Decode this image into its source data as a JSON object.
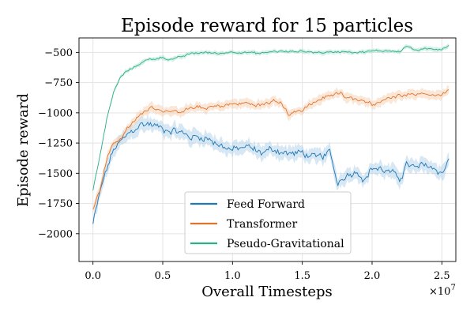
{
  "chart_data": {
    "type": "line",
    "title": "Episode reward for 15 particles",
    "xlabel": "Overall Timesteps",
    "ylabel": "Episode reward",
    "x_multiplier_label": "×10",
    "x_multiplier_exponent": "7",
    "xlim": [
      -0.1,
      2.6
    ],
    "ylim": [
      -2230,
      -380
    ],
    "xticks": [
      0.0,
      0.5,
      1.0,
      1.5,
      2.0,
      2.5
    ],
    "xtick_labels": [
      "0.0",
      "0.5",
      "1.0",
      "1.5",
      "2.0",
      "2.5"
    ],
    "yticks": [
      -2000,
      -1750,
      -1500,
      -1250,
      -1000,
      -750,
      -500
    ],
    "ytick_labels": [
      "−2000",
      "−1750",
      "−1500",
      "−1250",
      "−1000",
      "−750",
      "−500"
    ],
    "grid": true,
    "legend_position": "lower-center",
    "series": [
      {
        "name": "Feed Forward",
        "color": "#1f77b4",
        "band_color": "#a6cbe6",
        "band": 60,
        "noise": 45,
        "anchors": [
          [
            0.0,
            -1920
          ],
          [
            0.05,
            -1660
          ],
          [
            0.1,
            -1460
          ],
          [
            0.15,
            -1300
          ],
          [
            0.2,
            -1240
          ],
          [
            0.25,
            -1180
          ],
          [
            0.3,
            -1130
          ],
          [
            0.35,
            -1095
          ],
          [
            0.4,
            -1090
          ],
          [
            0.5,
            -1130
          ],
          [
            0.6,
            -1150
          ],
          [
            0.7,
            -1200
          ],
          [
            0.8,
            -1200
          ],
          [
            0.9,
            -1260
          ],
          [
            1.0,
            -1310
          ],
          [
            1.1,
            -1280
          ],
          [
            1.2,
            -1330
          ],
          [
            1.3,
            -1300
          ],
          [
            1.4,
            -1340
          ],
          [
            1.5,
            -1330
          ],
          [
            1.6,
            -1380
          ],
          [
            1.7,
            -1330
          ],
          [
            1.75,
            -1580
          ],
          [
            1.8,
            -1520
          ],
          [
            1.9,
            -1480
          ],
          [
            1.95,
            -1560
          ],
          [
            2.0,
            -1450
          ],
          [
            2.1,
            -1480
          ],
          [
            2.2,
            -1540
          ],
          [
            2.25,
            -1420
          ],
          [
            2.3,
            -1460
          ],
          [
            2.4,
            -1430
          ],
          [
            2.5,
            -1500
          ],
          [
            2.55,
            -1380
          ]
        ]
      },
      {
        "name": "Transformer",
        "color": "#e1742c",
        "band_color": "#f6c9a9",
        "band": 40,
        "noise": 22,
        "anchors": [
          [
            0.0,
            -1780
          ],
          [
            0.05,
            -1640
          ],
          [
            0.1,
            -1370
          ],
          [
            0.15,
            -1240
          ],
          [
            0.2,
            -1220
          ],
          [
            0.25,
            -1120
          ],
          [
            0.3,
            -1060
          ],
          [
            0.35,
            -1010
          ],
          [
            0.4,
            -960
          ],
          [
            0.45,
            -960
          ],
          [
            0.5,
            -980
          ],
          [
            0.6,
            -1000
          ],
          [
            0.7,
            -960
          ],
          [
            0.8,
            -960
          ],
          [
            1.0,
            -930
          ],
          [
            1.1,
            -920
          ],
          [
            1.2,
            -940
          ],
          [
            1.3,
            -900
          ],
          [
            1.35,
            -920
          ],
          [
            1.4,
            -1010
          ],
          [
            1.5,
            -980
          ],
          [
            1.55,
            -930
          ],
          [
            1.65,
            -880
          ],
          [
            1.75,
            -830
          ],
          [
            1.85,
            -880
          ],
          [
            1.95,
            -900
          ],
          [
            2.0,
            -930
          ],
          [
            2.1,
            -890
          ],
          [
            2.2,
            -850
          ],
          [
            2.3,
            -840
          ],
          [
            2.4,
            -840
          ],
          [
            2.5,
            -860
          ],
          [
            2.55,
            -810
          ]
        ]
      },
      {
        "name": "Pseudo-Gravitational",
        "color": "#2aaf8b",
        "band_color": "#a5dec9",
        "band": 18,
        "noise": 12,
        "anchors": [
          [
            0.0,
            -1640
          ],
          [
            0.05,
            -1350
          ],
          [
            0.1,
            -1050
          ],
          [
            0.15,
            -820
          ],
          [
            0.2,
            -700
          ],
          [
            0.25,
            -650
          ],
          [
            0.3,
            -620
          ],
          [
            0.35,
            -580
          ],
          [
            0.4,
            -560
          ],
          [
            0.5,
            -540
          ],
          [
            0.55,
            -560
          ],
          [
            0.6,
            -550
          ],
          [
            0.7,
            -510
          ],
          [
            0.8,
            -500
          ],
          [
            0.9,
            -510
          ],
          [
            1.0,
            -495
          ],
          [
            1.1,
            -500
          ],
          [
            1.2,
            -510
          ],
          [
            1.3,
            -490
          ],
          [
            1.4,
            -495
          ],
          [
            1.5,
            -490
          ],
          [
            1.6,
            -500
          ],
          [
            1.7,
            -500
          ],
          [
            1.8,
            -490
          ],
          [
            1.9,
            -500
          ],
          [
            2.0,
            -490
          ],
          [
            2.1,
            -485
          ],
          [
            2.2,
            -490
          ],
          [
            2.25,
            -445
          ],
          [
            2.3,
            -480
          ],
          [
            2.4,
            -475
          ],
          [
            2.5,
            -470
          ],
          [
            2.55,
            -440
          ]
        ]
      }
    ]
  }
}
